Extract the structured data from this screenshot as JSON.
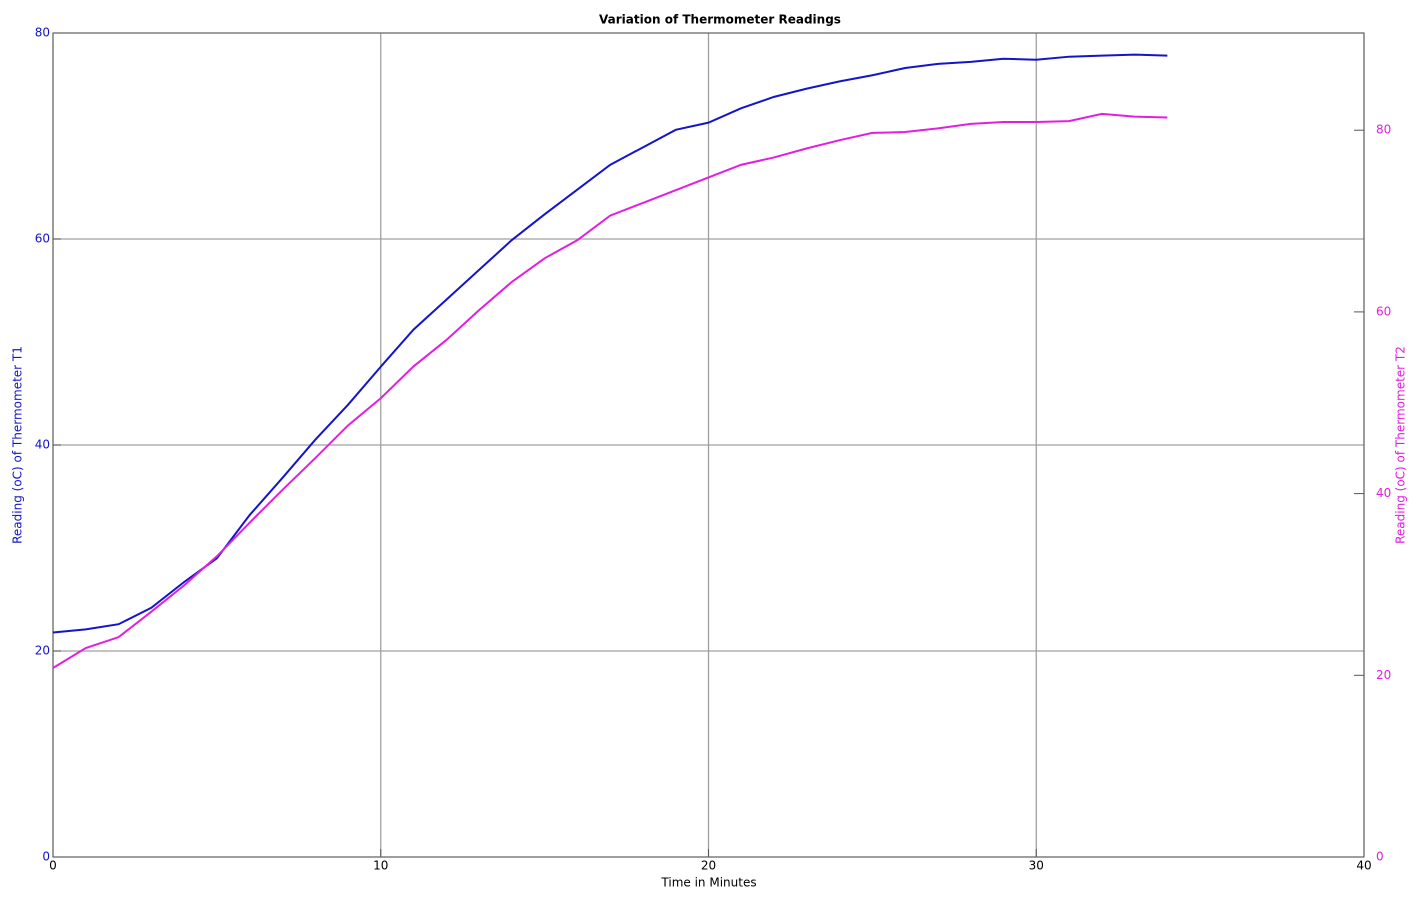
{
  "chart_data": {
    "type": "line",
    "title": "Variation of Thermometer Readings",
    "xlabel": "Time in Minutes",
    "ylabel": "Reading (oC) of Thermometer T1",
    "y2label": "Reading (oC) of Thermometer T2",
    "x": [
      0,
      1,
      2,
      3,
      4,
      5,
      6,
      7,
      8,
      9,
      10,
      11,
      12,
      13,
      14,
      15,
      16,
      17,
      18,
      19,
      20,
      21,
      22,
      23,
      24,
      25,
      26,
      27,
      28,
      29,
      30,
      31,
      32,
      33,
      34
    ],
    "series": [
      {
        "name": "T1",
        "color": "#1414c8",
        "axis": "y",
        "values": [
          21.8,
          22.1,
          22.6,
          24.2,
          26.7,
          29.0,
          33.2,
          36.8,
          40.5,
          43.9,
          47.6,
          51.2,
          54.1,
          57.0,
          59.9,
          62.4,
          64.8,
          67.2,
          68.9,
          70.6,
          71.3,
          72.7,
          73.8,
          74.6,
          75.3,
          75.9,
          76.6,
          77.0,
          77.2,
          77.5,
          77.4,
          77.7,
          77.8,
          77.9,
          77.8
        ]
      },
      {
        "name": "T2",
        "color": "#e21ee2",
        "axis": "y2",
        "values": [
          20.8,
          23.0,
          24.2,
          27.0,
          29.9,
          33.1,
          36.8,
          40.4,
          43.9,
          47.5,
          50.5,
          54.0,
          56.9,
          60.2,
          63.3,
          65.9,
          67.9,
          70.6,
          72.0,
          73.4,
          74.8,
          76.2,
          77.0,
          78.0,
          78.9,
          79.7,
          79.8,
          80.2,
          80.7,
          80.9,
          80.9,
          81.0,
          81.8,
          81.5,
          81.4
        ]
      }
    ],
    "xlim": [
      0,
      40
    ],
    "xticks": [
      0,
      10,
      20,
      30,
      40
    ],
    "ylim": [
      0,
      80
    ],
    "yticks": [
      0,
      20,
      40,
      60,
      80
    ],
    "y2lim": [
      0,
      90.7
    ],
    "y2ticks": [
      0,
      20,
      40,
      60,
      80
    ],
    "grid": true
  }
}
